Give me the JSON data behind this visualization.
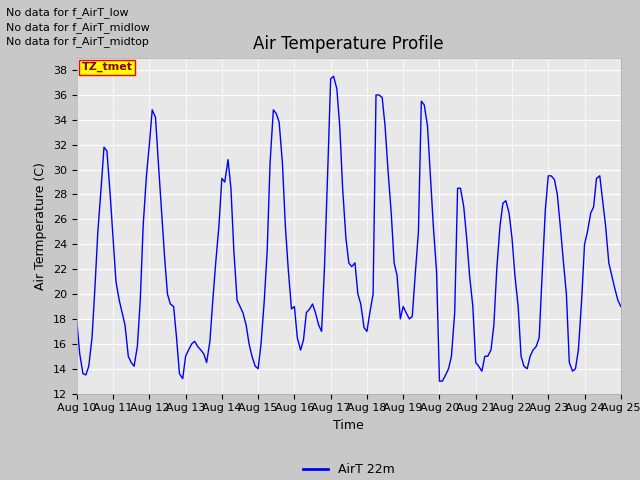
{
  "title": "Air Temperature Profile",
  "xlabel": "Time",
  "ylabel": "Air Termperature (C)",
  "line_color": "blue",
  "line_label": "AirT 22m",
  "ylim": [
    12,
    39
  ],
  "yticks": [
    12,
    14,
    16,
    18,
    20,
    22,
    24,
    26,
    28,
    30,
    32,
    34,
    36,
    38
  ],
  "no_data_texts": [
    "No data for f_AirT_low",
    "No data for f_AirT_midlow",
    "No data for f_AirT_midtop"
  ],
  "tz_label": "TZ_tmet",
  "x_tick_labels": [
    "Aug 10",
    "Aug 11",
    "Aug 12",
    "Aug 13",
    "Aug 14",
    "Aug 15",
    "Aug 16",
    "Aug 17",
    "Aug 18",
    "Aug 19",
    "Aug 20",
    "Aug 21",
    "Aug 22",
    "Aug 23",
    "Aug 24",
    "Aug 25"
  ],
  "fig_width": 6.4,
  "fig_height": 4.8,
  "dpi": 100,
  "time_values": [
    0.0,
    0.08,
    0.17,
    0.25,
    0.33,
    0.42,
    0.5,
    0.58,
    0.67,
    0.75,
    0.83,
    0.92,
    1.0,
    1.08,
    1.17,
    1.25,
    1.33,
    1.42,
    1.5,
    1.58,
    1.67,
    1.75,
    1.83,
    1.92,
    2.0,
    2.08,
    2.17,
    2.25,
    2.33,
    2.42,
    2.5,
    2.58,
    2.67,
    2.75,
    2.83,
    2.92,
    3.0,
    3.08,
    3.17,
    3.25,
    3.33,
    3.42,
    3.5,
    3.58,
    3.67,
    3.75,
    3.83,
    3.92,
    4.0,
    4.08,
    4.17,
    4.25,
    4.33,
    4.42,
    4.5,
    4.58,
    4.67,
    4.75,
    4.83,
    4.92,
    5.0,
    5.08,
    5.17,
    5.25,
    5.33,
    5.42,
    5.5,
    5.58,
    5.67,
    5.75,
    5.83,
    5.92,
    6.0,
    6.08,
    6.17,
    6.25,
    6.33,
    6.42,
    6.5,
    6.58,
    6.67,
    6.75,
    6.83,
    6.92,
    7.0,
    7.08,
    7.17,
    7.25,
    7.33,
    7.42,
    7.5,
    7.58,
    7.67,
    7.75,
    7.83,
    7.92,
    8.0,
    8.08,
    8.17,
    8.25,
    8.33,
    8.42,
    8.5,
    8.58,
    8.67,
    8.75,
    8.83,
    8.92,
    9.0,
    9.08,
    9.17,
    9.25,
    9.33,
    9.42,
    9.5,
    9.58,
    9.67,
    9.75,
    9.83,
    9.92,
    10.0,
    10.08,
    10.17,
    10.25,
    10.33,
    10.42,
    10.5,
    10.58,
    10.67,
    10.75,
    10.83,
    10.92,
    11.0,
    11.08,
    11.17,
    11.25,
    11.33,
    11.42,
    11.5,
    11.58,
    11.67,
    11.75,
    11.83,
    11.92,
    12.0,
    12.08,
    12.17,
    12.25,
    12.33,
    12.42,
    12.5,
    12.58,
    12.67,
    12.75,
    12.83,
    12.92,
    13.0,
    13.08,
    13.17,
    13.25,
    13.33,
    13.42,
    13.5,
    13.58,
    13.67,
    13.75,
    13.83,
    13.92,
    14.0,
    14.08,
    14.17,
    14.25,
    14.33,
    14.42,
    14.5,
    14.58,
    14.67,
    14.75,
    14.83,
    14.92,
    15.0
  ],
  "temp_values": [
    17.8,
    15.2,
    13.6,
    13.5,
    14.2,
    16.5,
    20.5,
    25.0,
    28.5,
    31.8,
    31.5,
    28.0,
    24.5,
    21.0,
    19.5,
    18.5,
    17.5,
    15.0,
    14.5,
    14.2,
    15.8,
    19.5,
    25.5,
    29.5,
    32.0,
    34.8,
    34.2,
    30.5,
    27.0,
    23.0,
    20.0,
    19.2,
    19.0,
    16.5,
    13.6,
    13.2,
    15.0,
    15.5,
    16.0,
    16.2,
    15.8,
    15.5,
    15.2,
    14.5,
    16.2,
    19.5,
    22.5,
    25.5,
    29.3,
    29.0,
    30.8,
    28.5,
    23.5,
    19.5,
    19.0,
    18.5,
    17.5,
    16.0,
    15.0,
    14.2,
    14.0,
    16.0,
    19.5,
    23.5,
    30.6,
    34.8,
    34.5,
    33.8,
    30.5,
    25.5,
    22.0,
    18.8,
    19.0,
    16.5,
    15.5,
    16.3,
    18.5,
    18.8,
    19.2,
    18.5,
    17.5,
    17.0,
    22.2,
    30.0,
    37.3,
    37.5,
    36.5,
    33.5,
    28.5,
    24.5,
    22.5,
    22.2,
    22.5,
    20.0,
    19.2,
    17.3,
    17.0,
    18.5,
    20.0,
    36.0,
    36.0,
    35.8,
    33.5,
    30.0,
    26.5,
    22.5,
    21.5,
    18.0,
    19.0,
    18.5,
    18.0,
    18.2,
    21.5,
    25.0,
    35.5,
    35.2,
    33.5,
    29.5,
    25.5,
    21.8,
    13.0,
    13.0,
    13.5,
    14.0,
    15.0,
    18.5,
    28.5,
    28.5,
    27.0,
    24.5,
    21.5,
    19.0,
    14.5,
    14.2,
    13.8,
    15.0,
    15.0,
    15.5,
    17.5,
    22.0,
    25.5,
    27.3,
    27.5,
    26.5,
    24.5,
    21.5,
    19.0,
    15.0,
    14.2,
    14.0,
    15.0,
    15.5,
    15.8,
    16.5,
    21.5,
    26.8,
    29.5,
    29.5,
    29.2,
    28.0,
    25.5,
    22.5,
    20.0,
    14.5,
    13.8,
    14.0,
    15.5,
    19.5,
    24.0,
    25.0,
    26.5,
    27.0,
    29.3,
    29.5,
    27.5,
    25.5,
    22.5,
    21.5,
    20.5,
    19.5,
    19.0
  ]
}
